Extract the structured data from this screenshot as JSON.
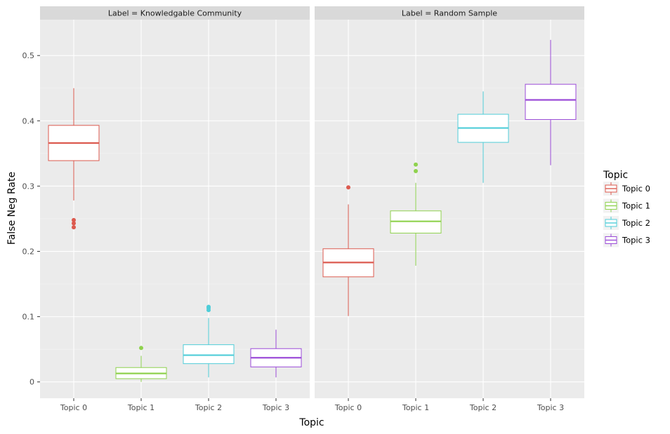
{
  "chart_data": {
    "type": "boxplot",
    "xlabel": "Topic",
    "ylabel": "False Neg Rate",
    "ylim": [
      -0.025,
      0.555
    ],
    "yticks": [
      0,
      0.1,
      0.2,
      0.3,
      0.4,
      0.5
    ],
    "ytick_labels": [
      "0",
      "0.1",
      "0.2",
      "0.3",
      "0.4",
      "0.5"
    ],
    "categories": [
      "Topic 0",
      "Topic 1",
      "Topic 2",
      "Topic 3"
    ],
    "grid": true,
    "legend": {
      "title": "Topic",
      "placement": "right",
      "items": [
        "Topic 0",
        "Topic 1",
        "Topic 2",
        "Topic 3"
      ]
    },
    "colors": {
      "Topic 0": "#dc5a4f",
      "Topic 1": "#8fd24e",
      "Topic 2": "#4fcdd8",
      "Topic 3": "#9b4bd8"
    },
    "panels": [
      {
        "label": "Label = Knowledgable Community",
        "boxes": [
          {
            "category": "Topic 0",
            "whisker_low": 0.278,
            "q1": 0.339,
            "median": 0.366,
            "q3": 0.393,
            "whisker_high": 0.45,
            "outliers": [
              0.237,
              0.243,
              0.248
            ]
          },
          {
            "category": "Topic 1",
            "whisker_low": 0.0,
            "q1": 0.005,
            "median": 0.013,
            "q3": 0.022,
            "whisker_high": 0.04,
            "outliers": [
              0.052
            ]
          },
          {
            "category": "Topic 2",
            "whisker_low": 0.007,
            "q1": 0.028,
            "median": 0.041,
            "q3": 0.057,
            "whisker_high": 0.098,
            "outliers": [
              0.11,
              0.113,
              0.115
            ]
          },
          {
            "category": "Topic 3",
            "whisker_low": 0.007,
            "q1": 0.023,
            "median": 0.037,
            "q3": 0.051,
            "whisker_high": 0.08,
            "outliers": []
          }
        ]
      },
      {
        "label": "Label = Random Sample",
        "boxes": [
          {
            "category": "Topic 0",
            "whisker_low": 0.101,
            "q1": 0.161,
            "median": 0.183,
            "q3": 0.204,
            "whisker_high": 0.272,
            "outliers": [
              0.298
            ]
          },
          {
            "category": "Topic 1",
            "whisker_low": 0.178,
            "q1": 0.228,
            "median": 0.246,
            "q3": 0.262,
            "whisker_high": 0.305,
            "outliers": [
              0.323,
              0.333
            ]
          },
          {
            "category": "Topic 2",
            "whisker_low": 0.305,
            "q1": 0.367,
            "median": 0.389,
            "q3": 0.41,
            "whisker_high": 0.445,
            "outliers": []
          },
          {
            "category": "Topic 3",
            "whisker_low": 0.332,
            "q1": 0.402,
            "median": 0.432,
            "q3": 0.456,
            "whisker_high": 0.524,
            "outliers": []
          }
        ]
      }
    ]
  }
}
